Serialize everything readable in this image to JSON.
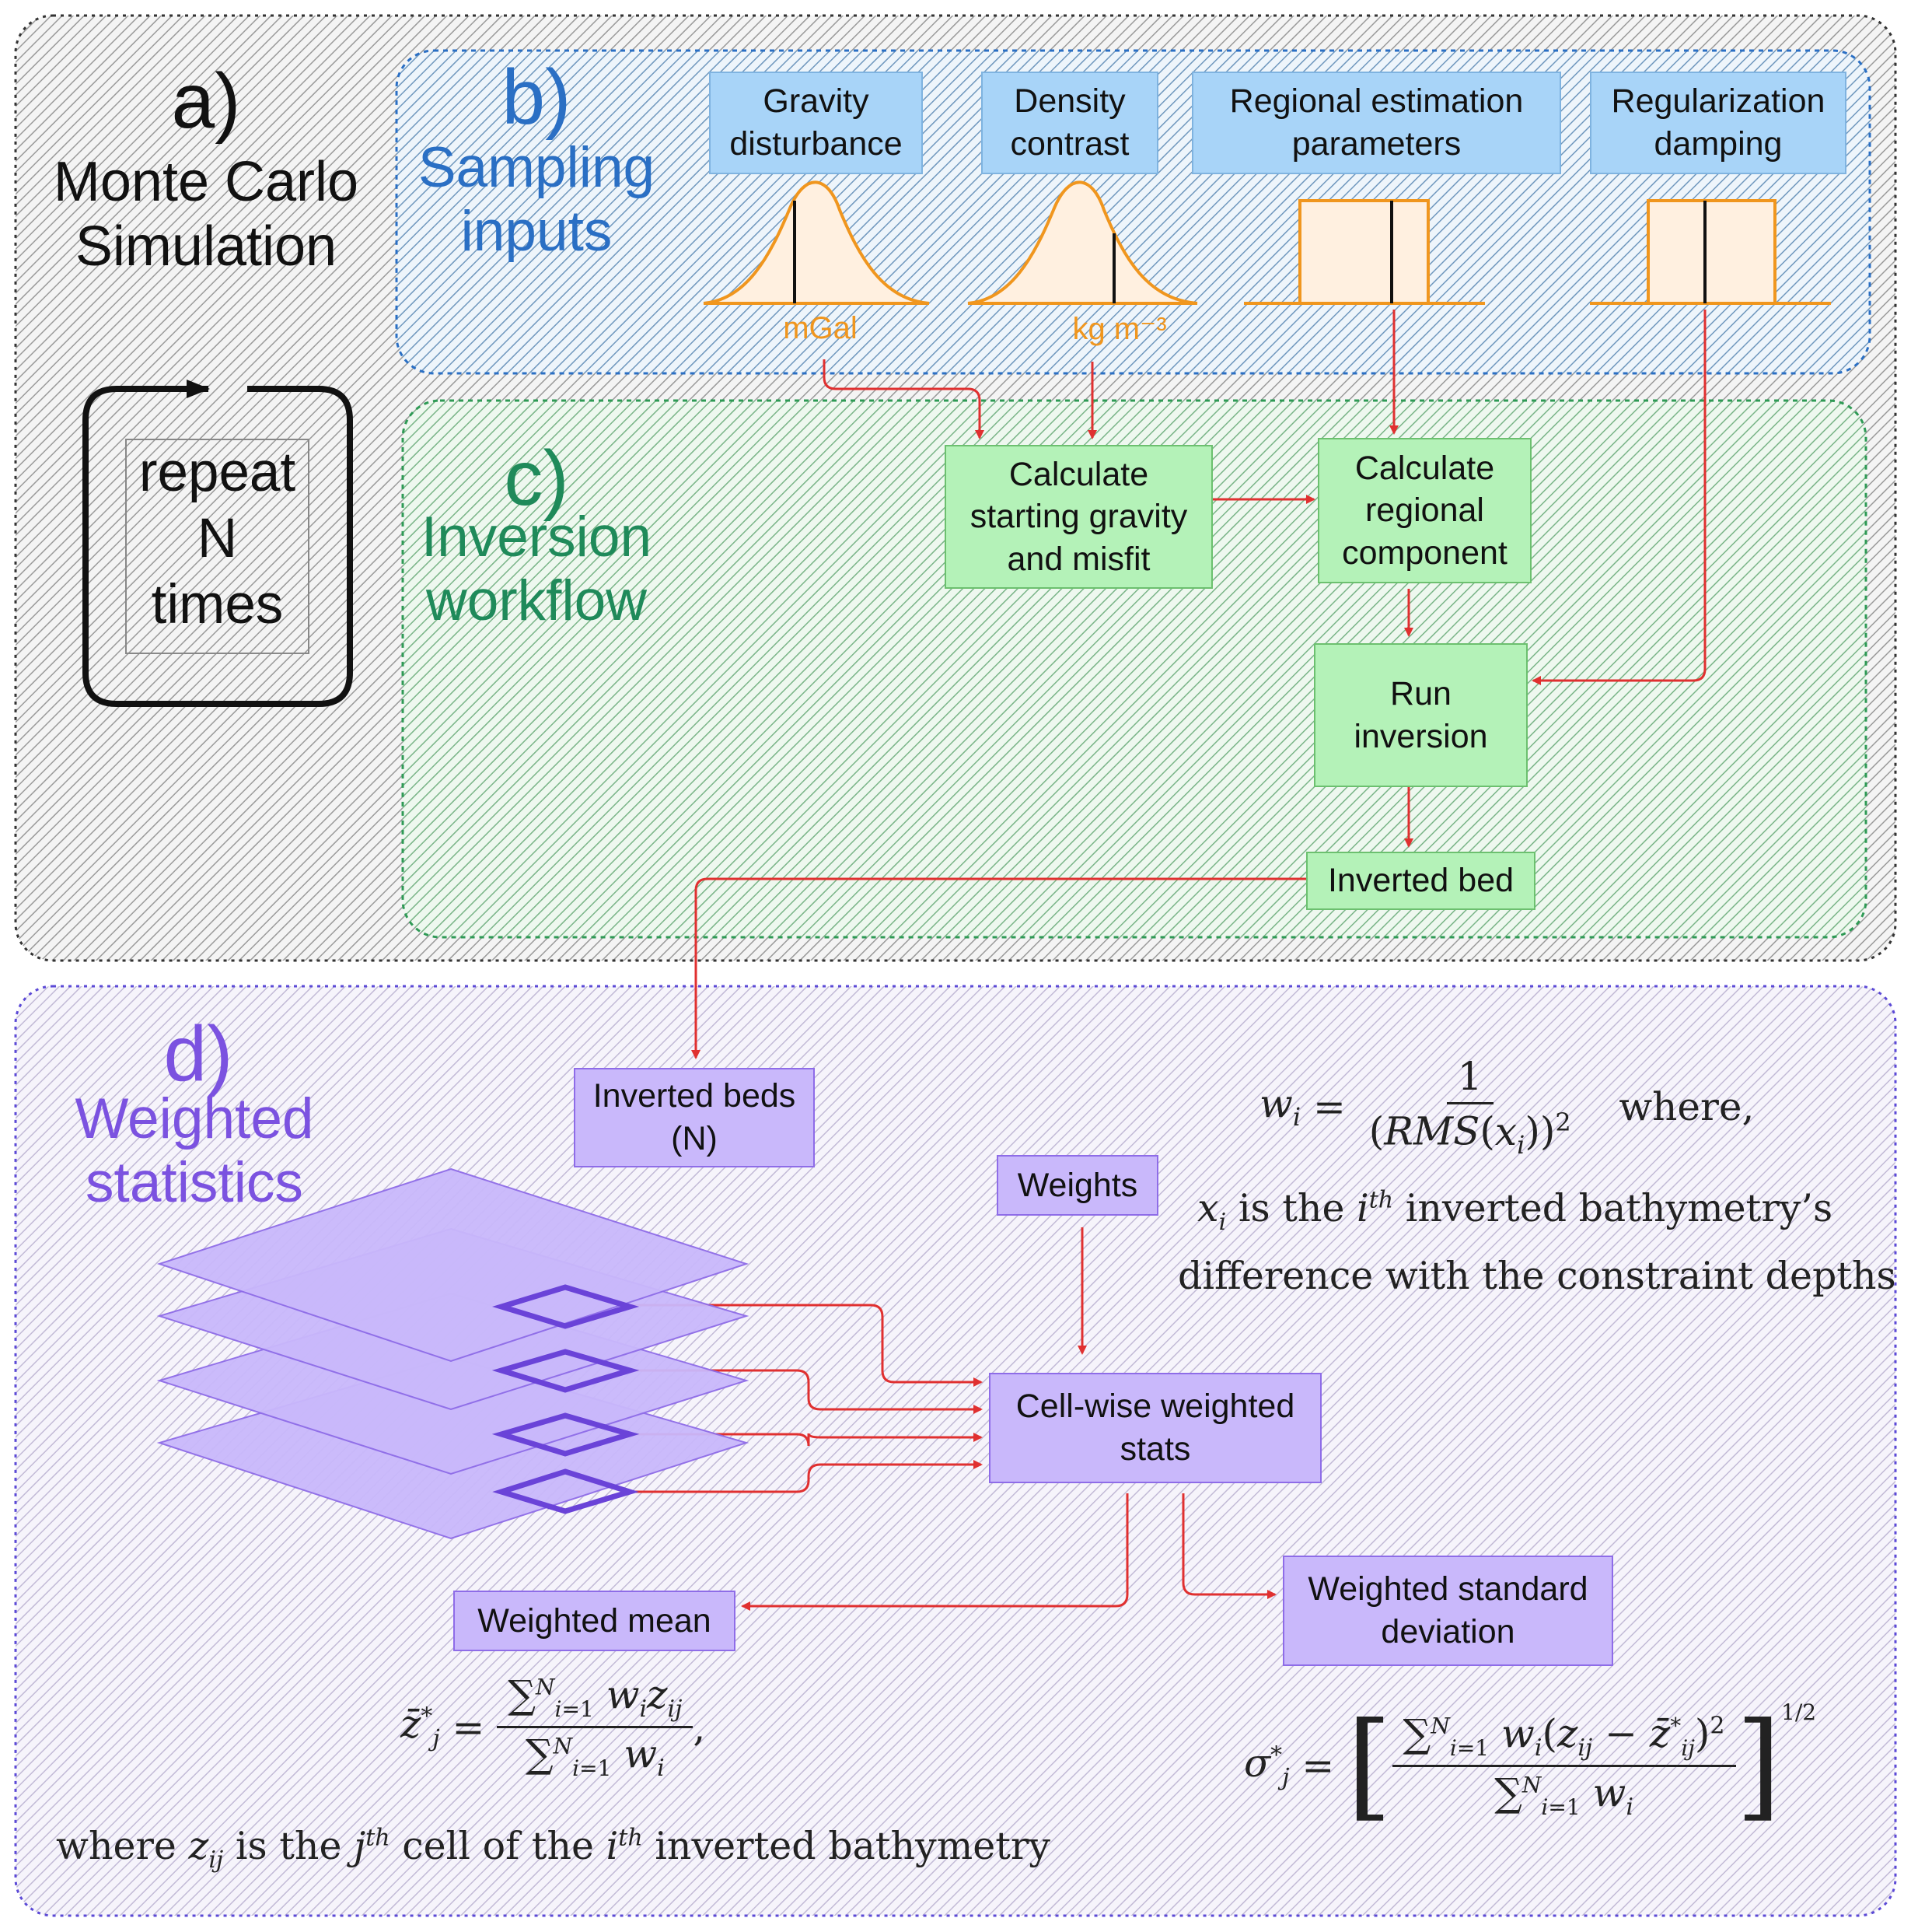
{
  "panel_a": {
    "letter": "a)",
    "title_line1": "Monte Carlo",
    "title_line2": "Simulation",
    "repeat_line1": "repeat",
    "repeat_line2": "N",
    "repeat_line3": "times"
  },
  "panel_b": {
    "letter": "b)",
    "title_line1": "Sampling",
    "title_line2": "inputs",
    "inputs": [
      {
        "label": "Gravity\ndisturbance",
        "unit": "mGal",
        "distribution": "normal"
      },
      {
        "label": "Density\ncontrast",
        "unit": "kg m⁻³",
        "distribution": "normal"
      },
      {
        "label": "Regional  estimation\nparameters",
        "unit": "",
        "distribution": "uniform"
      },
      {
        "label": "Regularization\ndamping",
        "unit": "",
        "distribution": "uniform"
      }
    ]
  },
  "panel_c": {
    "letter": "c)",
    "title_line1": "Inversion",
    "title_line2": "workflow",
    "steps": {
      "starting": "Calculate\nstarting gravity\nand misfit",
      "regional": "Calculate\nregional\ncomponent",
      "run": "Run\ninversion",
      "bed": "Inverted bed"
    }
  },
  "panel_d": {
    "letter": "d)",
    "title_line1": "Weighted",
    "title_line2": "statistics",
    "beds": "Inverted beds\n(N)",
    "weights": "Weights",
    "cellwise": "Cell-wise weighted\nstats",
    "mean": "Weighted mean",
    "std": "Weighted standard\ndeviation",
    "weight_formula_where": "where,",
    "weight_def_line1": "is the",
    "weight_def_line1b": "inverted bathymetry’s",
    "weight_def_line2": "difference with the constraint depths",
    "mean_where": "where",
    "mean_where_mid": "is the",
    "mean_where_mid2": "cell of the",
    "mean_where_end": "inverted bathymetry"
  },
  "colors": {
    "blue_region": "#2a6fc4",
    "green_region": "#1f8a5a",
    "purple_region": "#7b52e0",
    "arrow": "#e03030",
    "orange": "#f0961e"
  }
}
